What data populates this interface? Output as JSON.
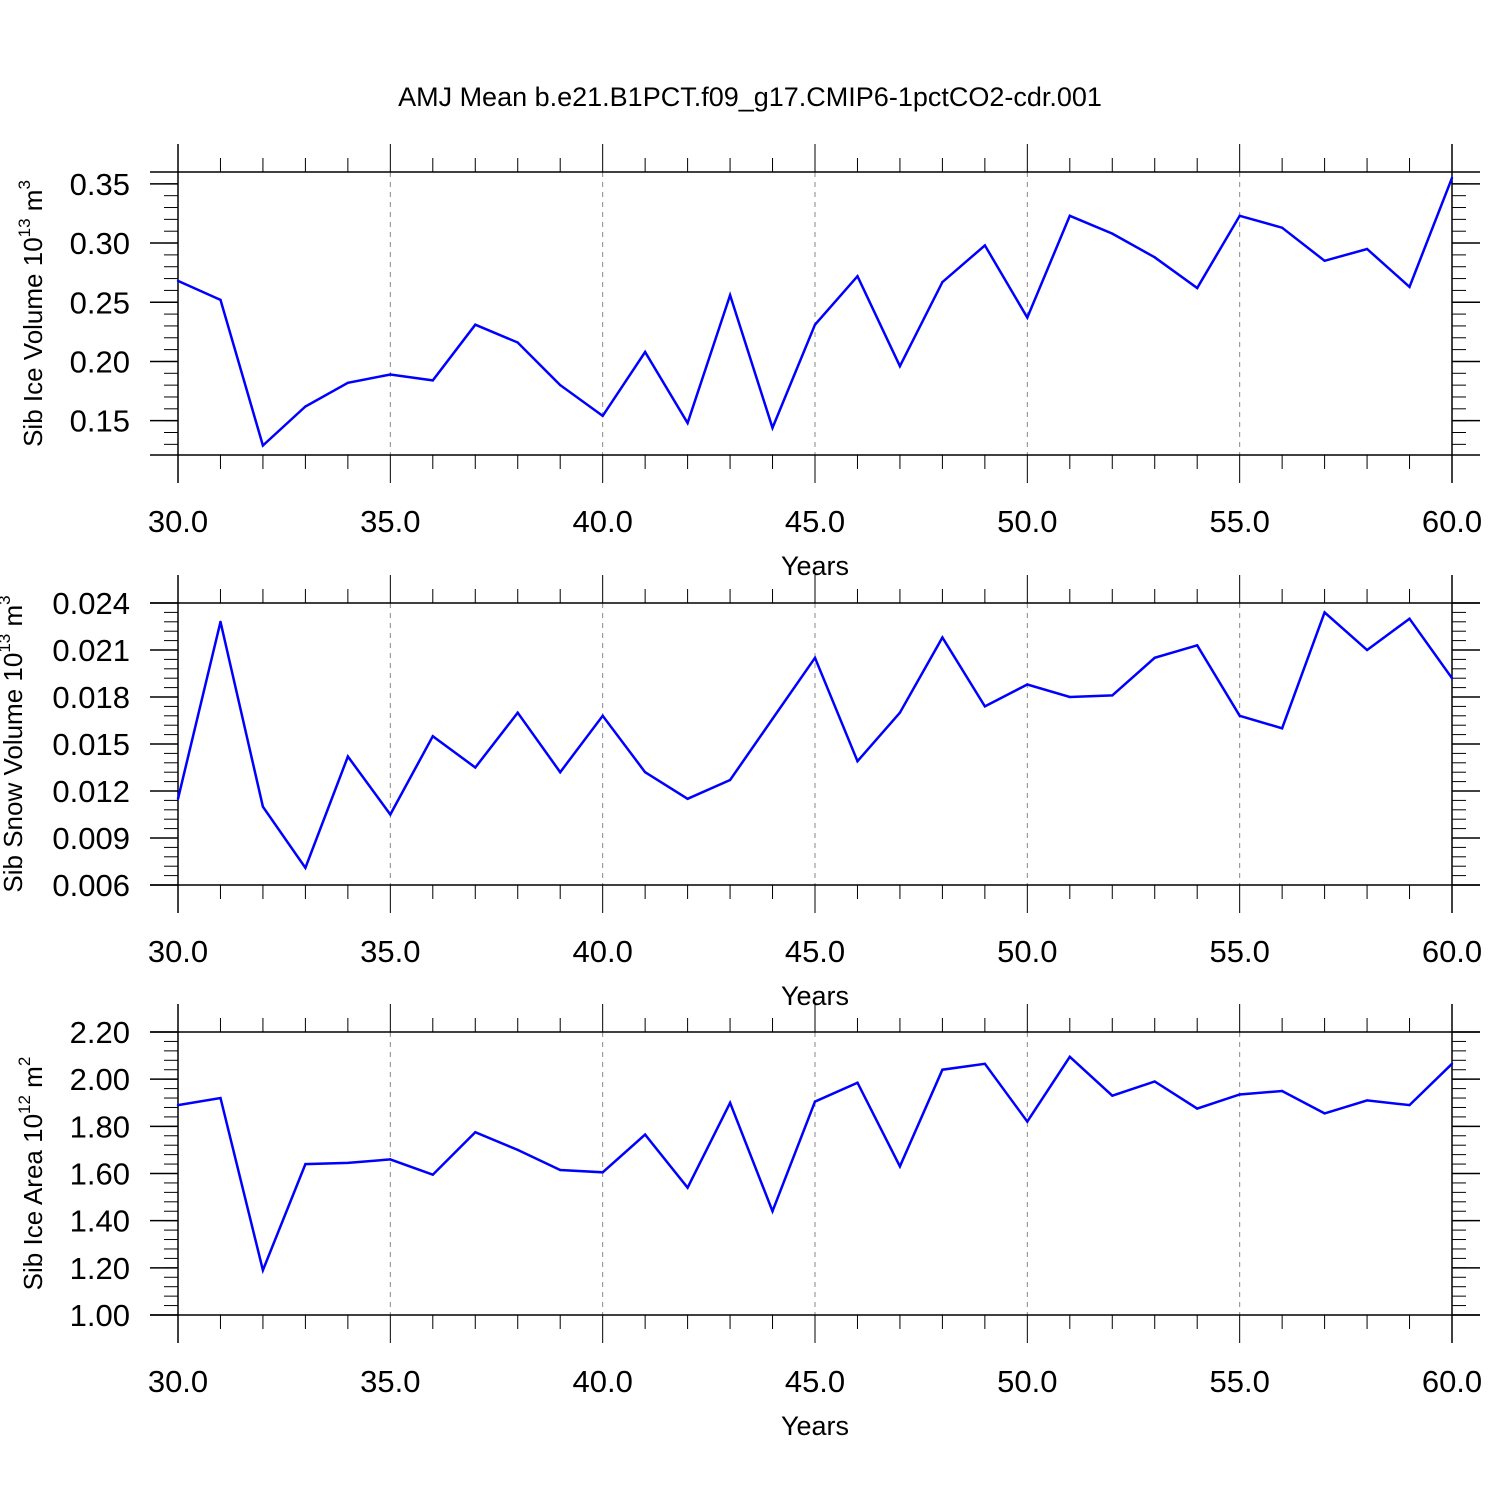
{
  "title": "AMJ Mean b.e21.B1PCT.f09_g17.CMIP6-1pctCO2-cdr.001",
  "colors": {
    "line": "#0000ff",
    "axis": "#000000",
    "grid": "#888888",
    "background": "#ffffff"
  },
  "chart_data": [
    {
      "type": "line",
      "ylabel_main": "Sib Ice Volume 10",
      "ylabel_exp": "13",
      "ylabel_unit": " m",
      "ylabel_unit_exp": "3",
      "xlabel": "Years",
      "xlim": [
        30,
        60
      ],
      "ylim": [
        0.121,
        0.36
      ],
      "x_ticks": [
        "30.0",
        "35.0",
        "40.0",
        "45.0",
        "50.0",
        "55.0",
        "60.0"
      ],
      "y_ticks": [
        {
          "value": 0.15,
          "label": "0.15"
        },
        {
          "value": 0.2,
          "label": "0.20"
        },
        {
          "value": 0.25,
          "label": "0.25"
        },
        {
          "value": 0.3,
          "label": "0.30"
        },
        {
          "value": 0.35,
          "label": "0.35"
        }
      ],
      "y_minor_step": 0.01,
      "x_gridlines": [
        35,
        40,
        45,
        50,
        55
      ],
      "series": [
        {
          "x": [
            30,
            31,
            32,
            33,
            34,
            35,
            36,
            37,
            38,
            39,
            40,
            41,
            42,
            43,
            44,
            45,
            46,
            47,
            48,
            49,
            50,
            51,
            52,
            53,
            54,
            55,
            56,
            57,
            58,
            59,
            60
          ],
          "values": [
            0.268,
            0.252,
            0.129,
            0.162,
            0.182,
            0.189,
            0.184,
            0.231,
            0.216,
            0.18,
            0.154,
            0.208,
            0.148,
            0.256,
            0.144,
            0.231,
            0.272,
            0.196,
            0.267,
            0.298,
            0.237,
            0.323,
            0.308,
            0.288,
            0.262,
            0.323,
            0.313,
            0.285,
            0.295,
            0.263,
            0.355
          ]
        }
      ]
    },
    {
      "type": "line",
      "ylabel_main": "Sib Snow Volume 10",
      "ylabel_exp": "13",
      "ylabel_unit": " m",
      "ylabel_unit_exp": "3",
      "xlabel": "Years",
      "xlim": [
        30,
        60
      ],
      "ylim": [
        0.006,
        0.024
      ],
      "x_ticks": [
        "30.0",
        "35.0",
        "40.0",
        "45.0",
        "50.0",
        "55.0",
        "60.0"
      ],
      "y_ticks": [
        {
          "value": 0.006,
          "label": "0.006"
        },
        {
          "value": 0.009,
          "label": "0.009"
        },
        {
          "value": 0.012,
          "label": "0.012"
        },
        {
          "value": 0.015,
          "label": "0.015"
        },
        {
          "value": 0.018,
          "label": "0.018"
        },
        {
          "value": 0.021,
          "label": "0.021"
        },
        {
          "value": 0.024,
          "label": "0.024"
        }
      ],
      "y_minor_step": 0.0006,
      "x_gridlines": [
        35,
        40,
        45,
        50,
        55
      ],
      "series": [
        {
          "x": [
            30,
            31,
            32,
            33,
            34,
            35,
            36,
            37,
            38,
            39,
            40,
            41,
            42,
            43,
            44,
            45,
            46,
            47,
            48,
            49,
            50,
            51,
            52,
            53,
            54,
            55,
            56,
            57,
            58,
            59,
            60
          ],
          "values": [
            0.0115,
            0.0228,
            0.011,
            0.0071,
            0.0142,
            0.0105,
            0.0155,
            0.0135,
            0.017,
            0.0132,
            0.0168,
            0.0132,
            0.0115,
            0.0127,
            0.0166,
            0.0205,
            0.0139,
            0.017,
            0.0218,
            0.0174,
            0.0188,
            0.018,
            0.0181,
            0.0205,
            0.0213,
            0.0168,
            0.016,
            0.0234,
            0.021,
            0.023,
            0.0192
          ]
        }
      ]
    },
    {
      "type": "line",
      "ylabel_main": "Sib Ice Area 10",
      "ylabel_exp": "12",
      "ylabel_unit": " m",
      "ylabel_unit_exp": "2",
      "xlabel": "Years",
      "xlim": [
        30,
        60
      ],
      "ylim": [
        1.0,
        2.2
      ],
      "x_ticks": [
        "30.0",
        "35.0",
        "40.0",
        "45.0",
        "50.0",
        "55.0",
        "60.0"
      ],
      "y_ticks": [
        {
          "value": 1.0,
          "label": "1.00"
        },
        {
          "value": 1.2,
          "label": "1.20"
        },
        {
          "value": 1.4,
          "label": "1.40"
        },
        {
          "value": 1.6,
          "label": "1.60"
        },
        {
          "value": 1.8,
          "label": "1.80"
        },
        {
          "value": 2.0,
          "label": "2.00"
        },
        {
          "value": 2.2,
          "label": "2.20"
        }
      ],
      "y_minor_step": 0.04,
      "x_gridlines": [
        35,
        40,
        45,
        50,
        55
      ],
      "series": [
        {
          "x": [
            30,
            31,
            32,
            33,
            34,
            35,
            36,
            37,
            38,
            39,
            40,
            41,
            42,
            43,
            44,
            45,
            46,
            47,
            48,
            49,
            50,
            51,
            52,
            53,
            54,
            55,
            56,
            57,
            58,
            59,
            60
          ],
          "values": [
            1.89,
            1.92,
            1.19,
            1.64,
            1.645,
            1.66,
            1.595,
            1.775,
            1.7,
            1.615,
            1.605,
            1.765,
            1.54,
            1.9,
            1.44,
            1.905,
            1.985,
            1.63,
            2.04,
            2.065,
            1.82,
            2.095,
            1.93,
            1.99,
            1.875,
            1.935,
            1.95,
            1.855,
            1.91,
            1.89,
            2.065
          ]
        }
      ]
    }
  ]
}
